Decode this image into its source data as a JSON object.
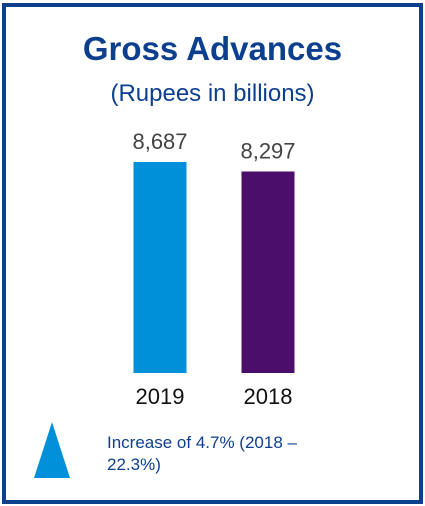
{
  "chart_data": {
    "type": "bar",
    "title": "Gross Advances",
    "subtitle": "(Rupees in billions)",
    "categories": [
      "2019",
      "2018"
    ],
    "values": [
      8687,
      8297
    ],
    "value_labels": [
      "8,687",
      "8,297"
    ],
    "bar_colors": [
      "#0090d9",
      "#4b0e6b"
    ],
    "ylim": [
      0,
      8687
    ],
    "grid": false,
    "legend": "none"
  },
  "colors": {
    "title": "#0d3f8f",
    "border": "#0d3f8f",
    "accent": "#0090d9"
  },
  "annotation": {
    "icon": "up-triangle-icon",
    "text": "Increase of 4.7% (2018 – 22.3%)"
  }
}
